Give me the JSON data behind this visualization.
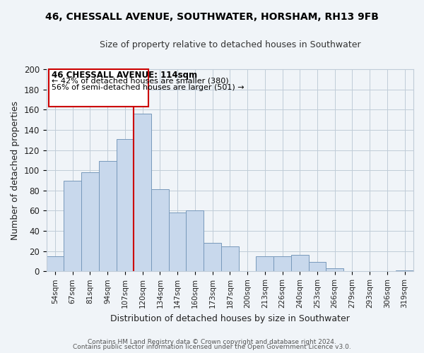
{
  "title": "46, CHESSALL AVENUE, SOUTHWATER, HORSHAM, RH13 9FB",
  "subtitle": "Size of property relative to detached houses in Southwater",
  "xlabel": "Distribution of detached houses by size in Southwater",
  "ylabel": "Number of detached properties",
  "bar_labels": [
    "54sqm",
    "67sqm",
    "81sqm",
    "94sqm",
    "107sqm",
    "120sqm",
    "134sqm",
    "147sqm",
    "160sqm",
    "173sqm",
    "187sqm",
    "200sqm",
    "213sqm",
    "226sqm",
    "240sqm",
    "253sqm",
    "266sqm",
    "279sqm",
    "293sqm",
    "306sqm",
    "319sqm"
  ],
  "bar_values": [
    15,
    90,
    98,
    109,
    131,
    156,
    81,
    58,
    60,
    28,
    25,
    0,
    15,
    15,
    16,
    9,
    3,
    0,
    0,
    0,
    1
  ],
  "bar_color": "#c8d8ec",
  "bar_edge_color": "#7799bb",
  "vline_x": 4.5,
  "vline_color": "#cc0000",
  "annotation_title": "46 CHESSALL AVENUE: 114sqm",
  "annotation_line1": "← 42% of detached houses are smaller (380)",
  "annotation_line2": "56% of semi-detached houses are larger (501) →",
  "ylim": [
    0,
    200
  ],
  "yticks": [
    0,
    20,
    40,
    60,
    80,
    100,
    120,
    140,
    160,
    180,
    200
  ],
  "footer1": "Contains HM Land Registry data © Crown copyright and database right 2024.",
  "footer2": "Contains public sector information licensed under the Open Government Licence v3.0.",
  "background_color": "#f0f4f8",
  "grid_color": "#c0ccd8",
  "title_fontsize": 10,
  "subtitle_fontsize": 9
}
